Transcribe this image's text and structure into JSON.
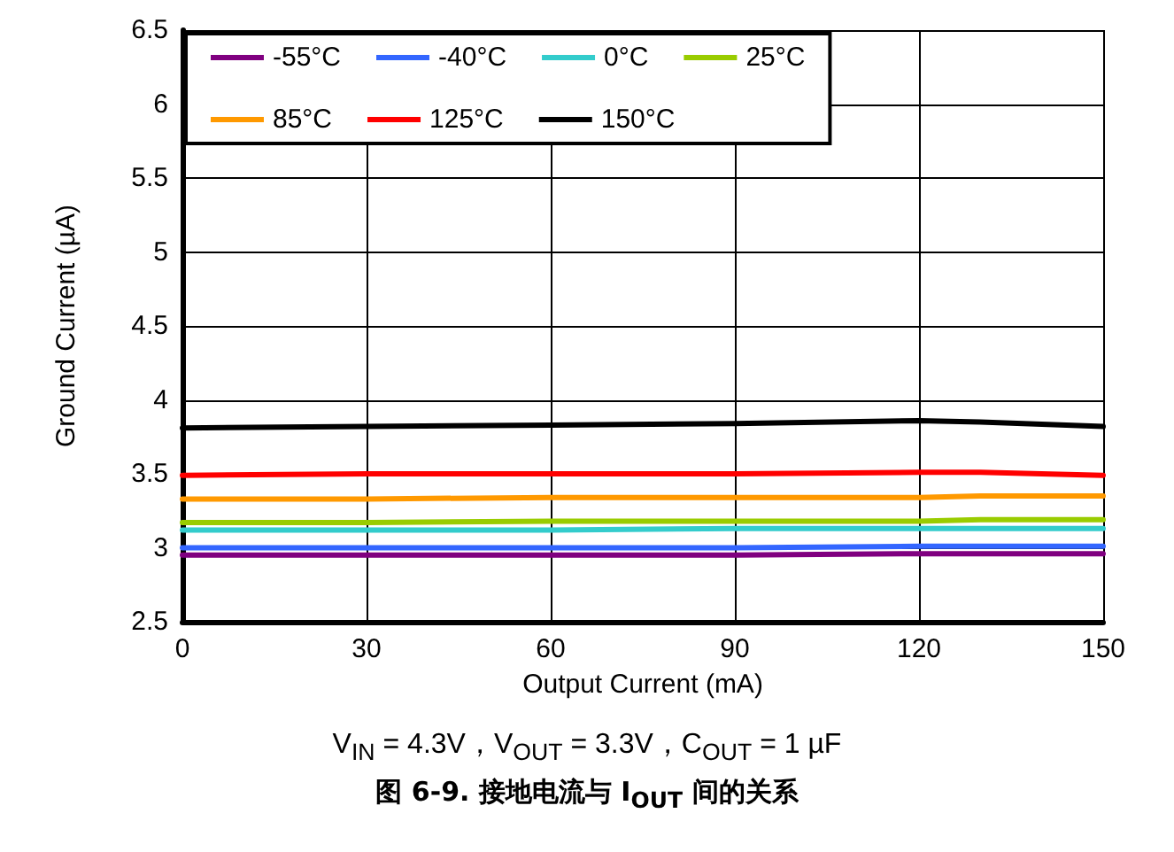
{
  "chart_data": {
    "type": "line",
    "xlabel": "Output Current (mA)",
    "ylabel": "Ground Current (µA)",
    "subtitle": "V$_{IN}$ = 4.3V，V$_{OUT}$ = 3.3V，C$_{OUT}$ = 1 µF",
    "title": "图 6-9. 接地电流与 I$_{OUT}$ 间的关系",
    "x": [
      0,
      30,
      60,
      90,
      120,
      130,
      150
    ],
    "series": [
      {
        "name": "-55°C",
        "color": "#800080",
        "values": [
          2.95,
          2.95,
          2.95,
          2.95,
          2.96,
          2.96,
          2.96
        ]
      },
      {
        "name": "-40°C",
        "color": "#3366ff",
        "values": [
          3.0,
          3.0,
          3.0,
          3.0,
          3.01,
          3.01,
          3.01
        ]
      },
      {
        "name": "0°C",
        "color": "#33cccc",
        "values": [
          3.12,
          3.12,
          3.12,
          3.13,
          3.13,
          3.13,
          3.13
        ]
      },
      {
        "name": "25°C",
        "color": "#99cc00",
        "values": [
          3.17,
          3.17,
          3.18,
          3.18,
          3.18,
          3.19,
          3.19
        ]
      },
      {
        "name": "85°C",
        "color": "#ff9900",
        "values": [
          3.33,
          3.33,
          3.34,
          3.34,
          3.34,
          3.35,
          3.35
        ]
      },
      {
        "name": "125°C",
        "color": "#ff0000",
        "values": [
          3.49,
          3.5,
          3.5,
          3.5,
          3.51,
          3.51,
          3.49
        ]
      },
      {
        "name": "150°C",
        "color": "#000000",
        "values": [
          3.81,
          3.82,
          3.83,
          3.84,
          3.86,
          3.85,
          3.82
        ]
      }
    ],
    "xlim": [
      0,
      150
    ],
    "xticks": [
      0,
      30,
      60,
      90,
      120,
      150
    ],
    "ylim": [
      2.5,
      6.5
    ],
    "yticks": [
      2.5,
      3,
      3.5,
      4,
      4.5,
      5,
      5.5,
      6,
      6.5
    ],
    "grid": true,
    "legend": "top left",
    "marker": "none",
    "line_style": "solid"
  }
}
